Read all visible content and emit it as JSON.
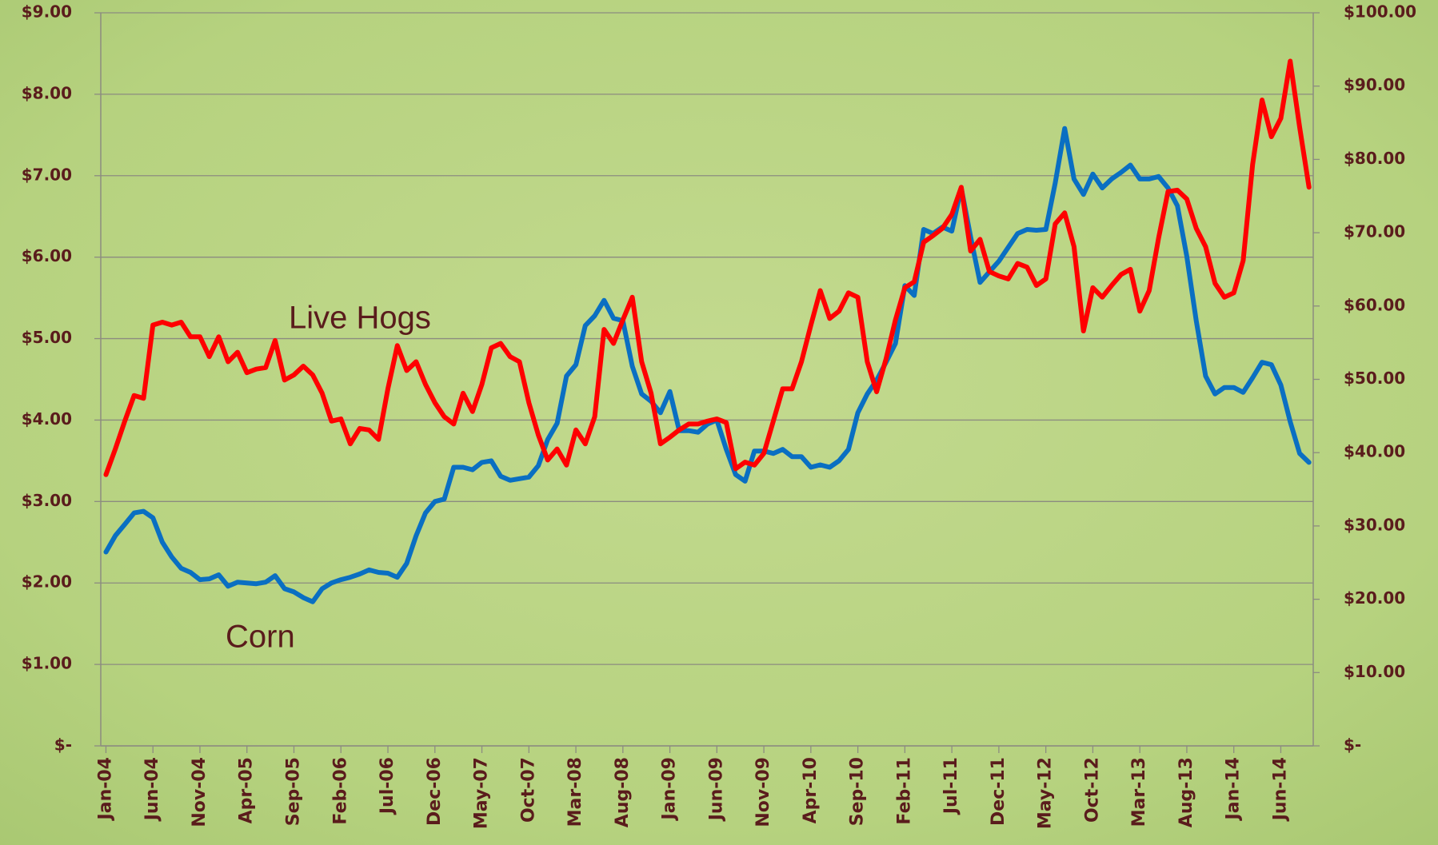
{
  "chart_data": {
    "type": "line",
    "categories": [
      "Jan-04",
      null,
      null,
      null,
      null,
      "Jun-04",
      null,
      null,
      null,
      null,
      "Nov-04",
      null,
      null,
      null,
      null,
      "Apr-05",
      null,
      null,
      null,
      null,
      "Sep-05",
      null,
      null,
      null,
      null,
      "Feb-06",
      null,
      null,
      null,
      null,
      "Jul-06",
      null,
      null,
      null,
      null,
      "Dec-06",
      null,
      null,
      null,
      null,
      "May-07",
      null,
      null,
      null,
      null,
      "Oct-07",
      null,
      null,
      null,
      null,
      "Mar-08",
      null,
      null,
      null,
      null,
      "Aug-08",
      null,
      null,
      null,
      null,
      "Jan-09",
      null,
      null,
      null,
      null,
      "Jun-09",
      null,
      null,
      null,
      null,
      "Nov-09",
      null,
      null,
      null,
      null,
      "Apr-10",
      null,
      null,
      null,
      null,
      "Sep-10",
      null,
      null,
      null,
      null,
      "Feb-11",
      null,
      null,
      null,
      null,
      "Jul-11",
      null,
      null,
      null,
      null,
      "Dec-11",
      null,
      null,
      null,
      null,
      "May-12",
      null,
      null,
      null,
      null,
      "Oct-12",
      null,
      null,
      null,
      null,
      "Mar-13",
      null,
      null,
      null,
      null,
      "Aug-13",
      null,
      null,
      null,
      null,
      "Jan-14",
      null,
      null,
      null,
      null,
      "Jun-14",
      null,
      null,
      null
    ],
    "series": [
      {
        "name": "Corn",
        "color": "#0a6fc2",
        "axis": "y",
        "values": [
          2.38,
          2.58,
          2.72,
          2.86,
          2.88,
          2.8,
          2.5,
          2.32,
          2.18,
          2.13,
          2.04,
          2.05,
          2.1,
          1.96,
          2.01,
          2.0,
          1.99,
          2.01,
          2.09,
          1.93,
          1.89,
          1.82,
          1.77,
          1.93,
          2.0,
          2.04,
          2.07,
          2.11,
          2.16,
          2.13,
          2.12,
          2.07,
          2.24,
          2.58,
          2.86,
          3.0,
          3.03,
          3.42,
          3.42,
          3.39,
          3.48,
          3.5,
          3.31,
          3.26,
          3.28,
          3.3,
          3.44,
          3.76,
          3.96,
          4.54,
          4.68,
          5.16,
          5.28,
          5.47,
          5.25,
          5.22,
          4.66,
          4.32,
          4.23,
          4.09,
          4.35,
          3.87,
          3.87,
          3.85,
          3.95,
          4.0,
          3.64,
          3.33,
          3.25,
          3.62,
          3.62,
          3.59,
          3.64,
          3.55,
          3.55,
          3.42,
          3.45,
          3.42,
          3.5,
          3.64,
          4.09,
          4.32,
          4.49,
          4.71,
          4.94,
          5.65,
          5.53,
          6.34,
          6.29,
          6.37,
          6.32,
          6.85,
          6.25,
          5.69,
          5.82,
          5.95,
          6.12,
          6.29,
          6.34,
          6.33,
          6.34,
          6.91,
          7.58,
          6.96,
          6.77,
          7.02,
          6.85,
          6.96,
          7.04,
          7.13,
          6.96,
          6.96,
          6.99,
          6.85,
          6.63,
          6.01,
          5.22,
          4.54,
          4.32,
          4.4,
          4.4,
          4.34,
          4.52,
          4.71,
          4.68,
          4.43,
          3.98,
          3.59,
          3.48
        ]
      },
      {
        "name": "Live Hogs",
        "color": "#ff0000",
        "axis": "y2",
        "values": [
          37.0,
          40.5,
          44.3,
          47.8,
          47.4,
          57.4,
          57.8,
          57.4,
          57.8,
          55.8,
          55.8,
          53.1,
          55.8,
          52.4,
          53.7,
          50.9,
          51.4,
          51.6,
          55.3,
          49.9,
          50.6,
          51.8,
          50.6,
          48.1,
          44.3,
          44.6,
          41.2,
          43.3,
          43.1,
          41.8,
          48.7,
          54.6,
          51.2,
          52.4,
          49.3,
          46.8,
          44.9,
          43.9,
          48.1,
          45.6,
          49.3,
          54.3,
          54.9,
          53.1,
          52.4,
          46.8,
          42.4,
          39.0,
          40.5,
          38.3,
          43.1,
          41.2,
          44.9,
          56.8,
          54.9,
          58.1,
          61.2,
          52.4,
          48.1,
          41.2,
          42.1,
          43.1,
          43.9,
          43.9,
          44.3,
          44.6,
          44.1,
          37.8,
          38.7,
          38.3,
          39.9,
          44.3,
          48.7,
          48.7,
          52.4,
          57.4,
          62.1,
          58.3,
          59.3,
          61.8,
          61.2,
          52.4,
          48.3,
          52.8,
          58.1,
          62.5,
          63.3,
          68.7,
          69.6,
          70.6,
          72.5,
          76.2,
          67.5,
          69.1,
          64.7,
          64.1,
          63.7,
          65.8,
          65.3,
          62.8,
          63.7,
          71.2,
          72.7,
          68.1,
          56.6,
          62.5,
          61.2,
          62.8,
          64.3,
          65.0,
          59.3,
          62.1,
          69.3,
          75.6,
          75.8,
          74.6,
          70.6,
          68.1,
          63.1,
          61.2,
          61.8,
          66.2,
          79.3,
          88.1,
          83.1,
          85.6,
          93.4,
          84.4,
          76.2
        ]
      }
    ],
    "ylim": [
      0,
      9
    ],
    "yticks": [
      {
        "value": 0,
        "label": "$-"
      },
      {
        "value": 1,
        "label": "$1.00"
      },
      {
        "value": 2,
        "label": "$2.00"
      },
      {
        "value": 3,
        "label": "$3.00"
      },
      {
        "value": 4,
        "label": "$4.00"
      },
      {
        "value": 5,
        "label": "$5.00"
      },
      {
        "value": 6,
        "label": "$6.00"
      },
      {
        "value": 7,
        "label": "$7.00"
      },
      {
        "value": 8,
        "label": "$8.00"
      },
      {
        "value": 9,
        "label": "$9.00"
      }
    ],
    "y2lim": [
      0,
      100
    ],
    "y2ticks": [
      {
        "value": 0,
        "label": "$-"
      },
      {
        "value": 10,
        "label": "$10.00"
      },
      {
        "value": 20,
        "label": "$20.00"
      },
      {
        "value": 30,
        "label": "$30.00"
      },
      {
        "value": 40,
        "label": "$40.00"
      },
      {
        "value": 50,
        "label": "$50.00"
      },
      {
        "value": 60,
        "label": "$60.00"
      },
      {
        "value": 70,
        "label": "$70.00"
      },
      {
        "value": 80,
        "label": "$80.00"
      },
      {
        "value": 90,
        "label": "$90.00"
      },
      {
        "value": 100,
        "label": "$100.00"
      }
    ],
    "grid": true
  }
}
